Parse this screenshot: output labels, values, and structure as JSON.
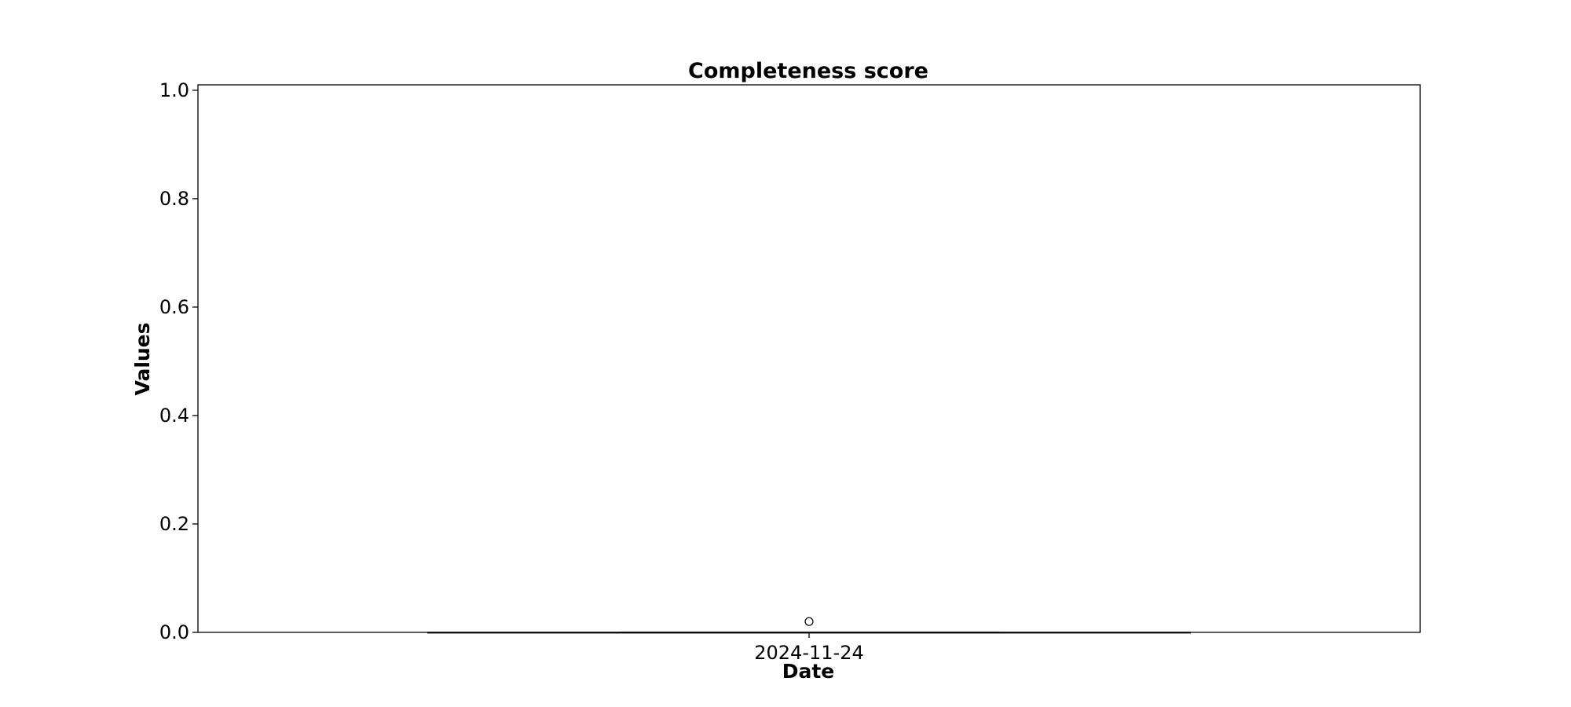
{
  "chart_data": {
    "type": "box",
    "title": "Completeness score",
    "xlabel": "Date",
    "ylabel": "Values",
    "ylim": [
      0.0,
      1.0
    ],
    "yticks": [
      "0.0",
      "0.2",
      "0.4",
      "0.6",
      "0.8",
      "1.0"
    ],
    "categories": [
      "2024-11-24"
    ],
    "boxes": [
      {
        "category": "2024-11-24",
        "whisker_low": 0.0,
        "q1": 0.0,
        "median": 0.0,
        "q3": 0.0,
        "whisker_high": 0.0,
        "outliers": [
          0.02
        ]
      }
    ],
    "grid": false,
    "legend": "none"
  },
  "colors": {
    "axis": "#000000",
    "box": "#000000",
    "outlier_edge": "#000000",
    "outlier_fill": "#ffffff"
  }
}
